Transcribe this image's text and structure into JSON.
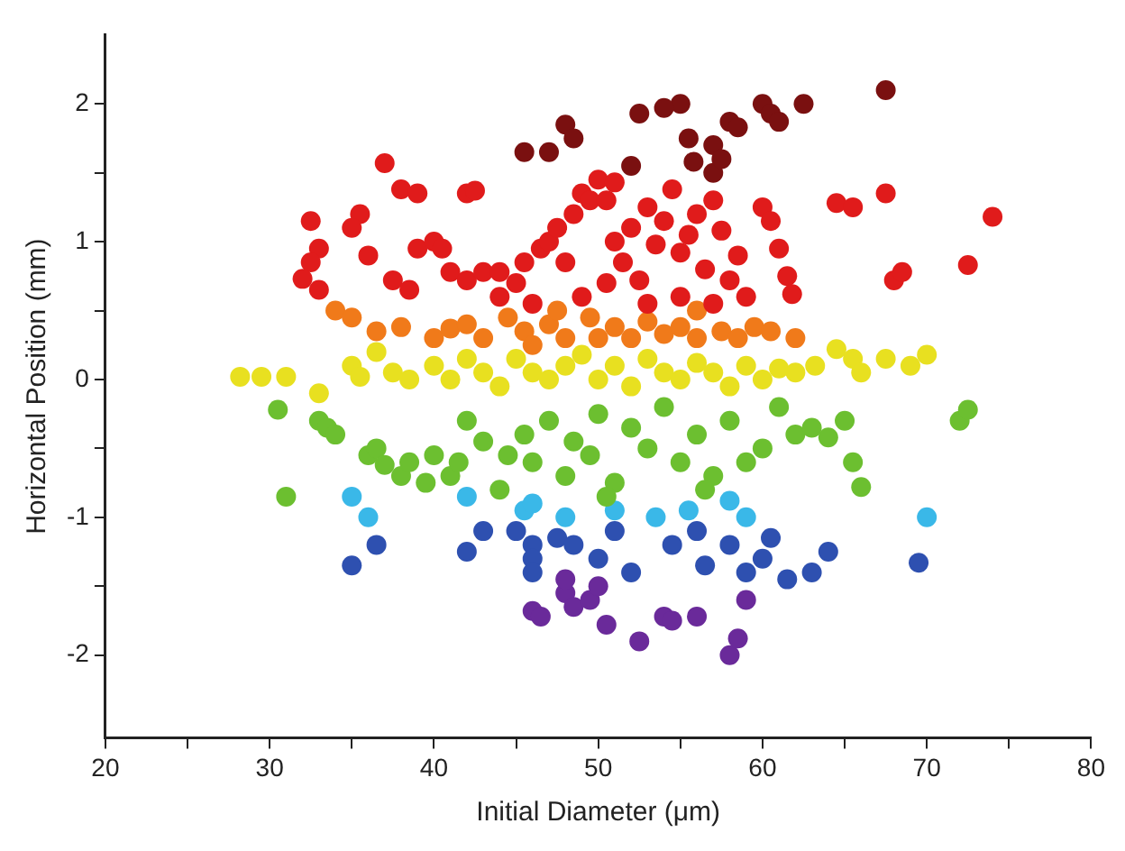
{
  "chart_data": {
    "type": "scatter",
    "xlabel": "Initial Diameter (μm)",
    "ylabel": "Horizontal Position (mm)",
    "xlim": [
      20,
      80
    ],
    "ylim": [
      -2.6,
      2.5
    ],
    "xticks": [
      20,
      {
        "value": 25,
        "label": null
      },
      30,
      {
        "value": 35,
        "label": null
      },
      40,
      {
        "value": 45,
        "label": null
      },
      50,
      {
        "value": 55,
        "label": null
      },
      60,
      {
        "value": 65,
        "label": null
      },
      70,
      {
        "value": 75,
        "label": null
      },
      80
    ],
    "yticks": [
      -2,
      {
        "value": -1.5,
        "label": null
      },
      -1,
      {
        "value": -0.5,
        "label": null
      },
      0,
      {
        "value": 0.5,
        "label": null
      },
      1,
      {
        "value": 1.5,
        "label": null
      },
      2
    ],
    "grid": false,
    "legend": false,
    "marker": "circle",
    "series": [
      {
        "color": "#7a1010",
        "x": [
          67.5,
          62.5,
          60,
          55,
          54,
          52.5,
          60.5,
          61,
          58,
          58.5,
          55.5,
          57,
          48,
          48.5,
          47,
          45.5,
          52,
          55.8,
          57,
          57.5
        ],
        "values": [
          2.1,
          2.0,
          2.0,
          2.0,
          1.97,
          1.93,
          1.93,
          1.87,
          1.87,
          1.83,
          1.75,
          1.7,
          1.85,
          1.75,
          1.65,
          1.65,
          1.55,
          1.58,
          1.5,
          1.6
        ]
      },
      {
        "color": "#e01b1b",
        "x": [
          37,
          38,
          39,
          42,
          42.5,
          35.5,
          35,
          32.5,
          33,
          32.5,
          32,
          33,
          36,
          37.5,
          38.5,
          39,
          40,
          40.5,
          41,
          42,
          43,
          44,
          45,
          45.5,
          46.5,
          47,
          47.5,
          48,
          48.5,
          49,
          49.5,
          50,
          50.5,
          51,
          51,
          51.5,
          52,
          52.5,
          53,
          53.5,
          54,
          54.5,
          55,
          55.5,
          56,
          56.5,
          57,
          57.5,
          58,
          58.5,
          59,
          60,
          60.5,
          61,
          61.5,
          61.8,
          64.5,
          65.5,
          67.5,
          68,
          68.5,
          72.5,
          74,
          44,
          46,
          49,
          50.5,
          53,
          55,
          57
        ],
        "values": [
          1.57,
          1.38,
          1.35,
          1.35,
          1.37,
          1.2,
          1.1,
          1.15,
          0.95,
          0.85,
          0.73,
          0.65,
          0.9,
          0.72,
          0.65,
          0.95,
          1.0,
          0.95,
          0.78,
          0.72,
          0.78,
          0.78,
          0.7,
          0.85,
          0.95,
          1.0,
          1.1,
          0.85,
          1.2,
          1.35,
          1.3,
          1.45,
          1.3,
          1.43,
          1.0,
          0.85,
          1.1,
          0.72,
          1.25,
          0.98,
          1.15,
          1.38,
          0.92,
          1.05,
          1.2,
          0.8,
          1.3,
          1.08,
          0.72,
          0.9,
          0.6,
          1.25,
          1.15,
          0.95,
          0.75,
          0.62,
          1.28,
          1.25,
          1.35,
          0.72,
          0.78,
          0.83,
          1.18,
          0.6,
          0.55,
          0.6,
          0.7,
          0.55,
          0.6,
          0.55
        ]
      },
      {
        "color": "#f07a1a",
        "x": [
          34,
          35,
          36.5,
          38,
          40,
          41,
          42,
          43,
          44.5,
          45.5,
          46,
          47,
          48,
          49.5,
          50,
          51,
          52,
          53,
          54,
          55,
          56,
          57.5,
          58.5,
          59.5,
          60.5,
          62,
          47.5,
          56
        ],
        "values": [
          0.5,
          0.45,
          0.35,
          0.38,
          0.3,
          0.37,
          0.4,
          0.3,
          0.45,
          0.35,
          0.25,
          0.4,
          0.3,
          0.45,
          0.3,
          0.38,
          0.3,
          0.42,
          0.33,
          0.38,
          0.3,
          0.35,
          0.3,
          0.38,
          0.35,
          0.3,
          0.5,
          0.5
        ]
      },
      {
        "color": "#e8e020",
        "x": [
          28.2,
          29.5,
          31,
          33,
          35,
          35.5,
          36.5,
          37.5,
          38.5,
          40,
          41,
          42,
          43,
          44,
          45,
          46,
          47,
          48,
          49,
          50,
          51,
          52,
          53,
          54,
          55,
          56,
          57,
          58,
          59,
          60,
          61,
          62,
          63.2,
          64.5,
          65.5,
          67.5,
          69,
          70,
          66
        ],
        "values": [
          0.02,
          0.02,
          0.02,
          -0.1,
          0.1,
          0.02,
          0.2,
          0.05,
          0.0,
          0.1,
          0.0,
          0.15,
          0.05,
          -0.05,
          0.15,
          0.05,
          0.0,
          0.1,
          0.18,
          0.0,
          0.1,
          -0.05,
          0.15,
          0.05,
          0.0,
          0.12,
          0.05,
          -0.05,
          0.1,
          0.0,
          0.08,
          0.05,
          0.1,
          0.22,
          0.15,
          0.15,
          0.1,
          0.18,
          0.05
        ]
      },
      {
        "color": "#6cbf30",
        "x": [
          30.5,
          31,
          33,
          33.5,
          34,
          36,
          36.5,
          37,
          38,
          38.5,
          39.5,
          40,
          41,
          41.5,
          42,
          43,
          44,
          44.5,
          45.5,
          46,
          47,
          48,
          48.5,
          49.5,
          50,
          51,
          52,
          53,
          54,
          55,
          56,
          57,
          58,
          59,
          60,
          61,
          62,
          63,
          64,
          65,
          65.5,
          66,
          72,
          72.5,
          56.5,
          50.5
        ],
        "values": [
          -0.22,
          -0.85,
          -0.3,
          -0.35,
          -0.4,
          -0.55,
          -0.5,
          -0.62,
          -0.7,
          -0.6,
          -0.75,
          -0.55,
          -0.7,
          -0.6,
          -0.3,
          -0.45,
          -0.8,
          -0.55,
          -0.4,
          -0.6,
          -0.3,
          -0.7,
          -0.45,
          -0.55,
          -0.25,
          -0.75,
          -0.35,
          -0.5,
          -0.2,
          -0.6,
          -0.4,
          -0.7,
          -0.3,
          -0.6,
          -0.5,
          -0.2,
          -0.4,
          -0.35,
          -0.42,
          -0.3,
          -0.6,
          -0.78,
          -0.3,
          -0.22,
          -0.8,
          -0.85
        ]
      },
      {
        "color": "#3ab8e8",
        "x": [
          35,
          36,
          42,
          45.5,
          46,
          51,
          53.5,
          55.5,
          58,
          59,
          70,
          48
        ],
        "values": [
          -0.85,
          -1.0,
          -0.85,
          -0.95,
          -0.9,
          -0.95,
          -1.0,
          -0.95,
          -0.88,
          -1.0,
          -1.0,
          -1.0
        ]
      },
      {
        "color": "#2e50b0",
        "x": [
          35,
          36.5,
          42,
          43,
          45,
          46,
          46,
          46,
          47.5,
          48.5,
          50,
          51,
          52,
          54.5,
          56,
          58,
          59,
          60,
          61.5,
          63,
          64,
          69.5,
          60.5,
          56.5
        ],
        "values": [
          -1.35,
          -1.2,
          -1.25,
          -1.1,
          -1.1,
          -1.2,
          -1.3,
          -1.4,
          -1.15,
          -1.2,
          -1.3,
          -1.1,
          -1.4,
          -1.2,
          -1.1,
          -1.2,
          -1.4,
          -1.3,
          -1.45,
          -1.4,
          -1.25,
          -1.33,
          -1.15,
          -1.35
        ]
      },
      {
        "color": "#6a2a9a",
        "x": [
          46,
          46.5,
          48,
          48.5,
          49.5,
          50.5,
          52.5,
          54,
          54.5,
          56,
          58,
          58.5,
          59,
          48,
          50
        ],
        "values": [
          -1.68,
          -1.72,
          -1.55,
          -1.65,
          -1.6,
          -1.78,
          -1.9,
          -1.72,
          -1.75,
          -1.72,
          -2.0,
          -1.88,
          -1.6,
          -1.45,
          -1.5
        ]
      }
    ]
  }
}
